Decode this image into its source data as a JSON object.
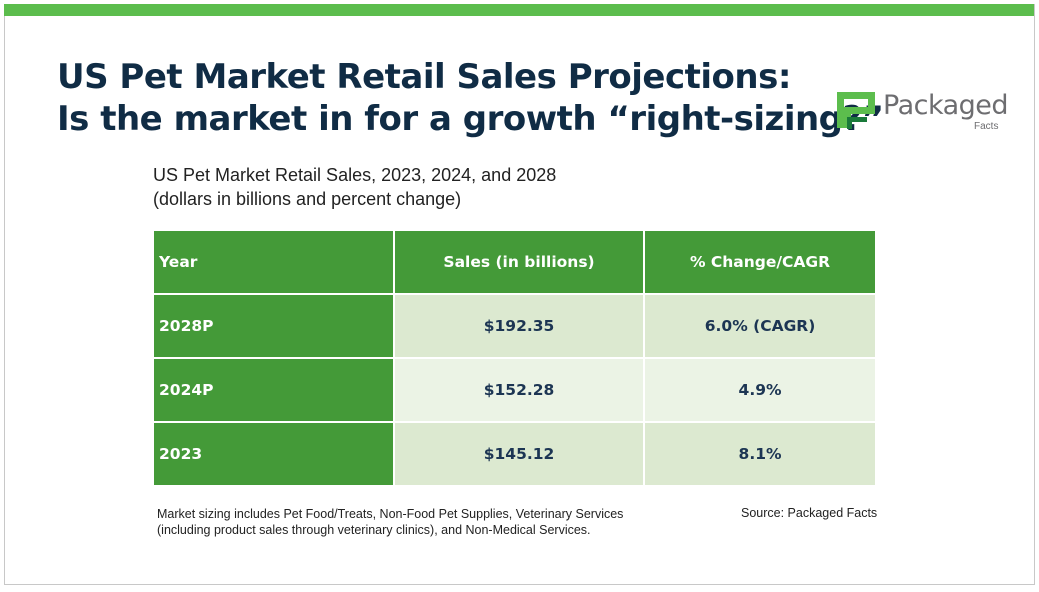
{
  "title_lines": [
    "US Pet Market Retail Sales Projections:",
    "Is the market in for a growth “right-sizing?”"
  ],
  "logo": {
    "word": "Packaged",
    "sub": "Facts",
    "colors": {
      "light": "#5cbd4d",
      "dark": "#1a7a3a"
    }
  },
  "subtitle": [
    "US Pet Market Retail Sales, 2023, 2024, and 2028",
    "(dollars in billions and percent change)"
  ],
  "table": {
    "headers": [
      "Year",
      "Sales (in billions)",
      "% Change/CAGR"
    ],
    "rows": [
      [
        "2028P",
        "$192.35",
        "6.0% (CAGR)"
      ],
      [
        "2024P",
        "$152.28",
        "4.9%"
      ],
      [
        "2023",
        "$145.12",
        "8.1%"
      ]
    ]
  },
  "note": [
    "Market sizing includes Pet Food/Treats, Non-Food Pet Supplies, Veterinary Services",
    "(including product sales through veterinary clinics), and Non-Medical Services."
  ],
  "source": "Source: Packaged Facts",
  "colors": {
    "accent": "#5cbd4d",
    "table_green": "#449a38",
    "title": "#102c45"
  }
}
